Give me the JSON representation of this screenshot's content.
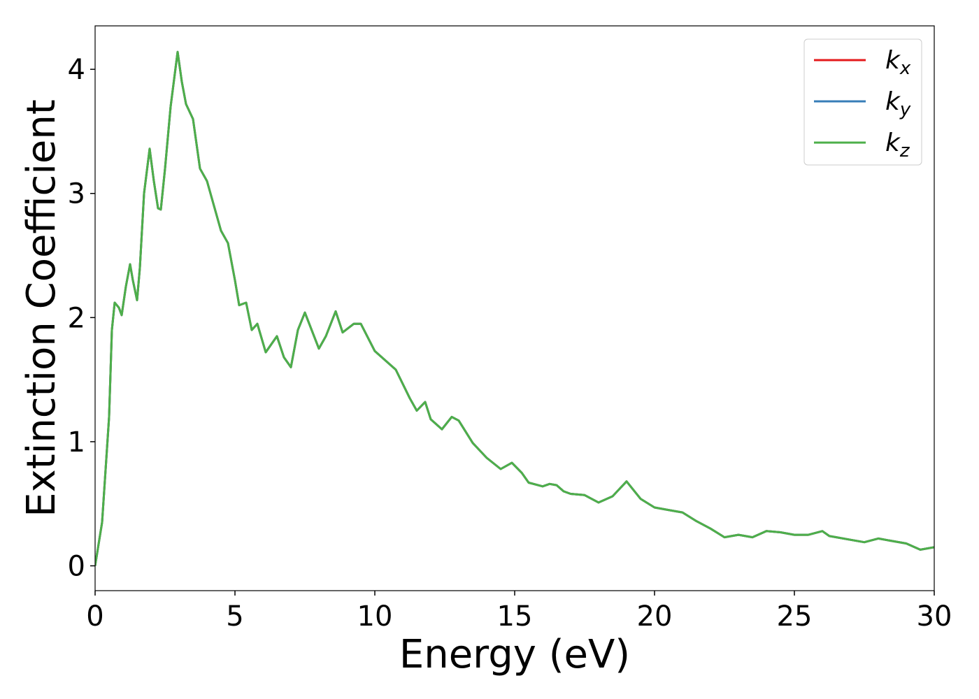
{
  "chart_data": {
    "type": "line",
    "xlabel": "Energy (eV)",
    "ylabel": "Extinction Coefficient",
    "x": [
      0,
      0.25,
      0.5,
      0.6,
      0.7,
      0.85,
      0.95,
      1.1,
      1.25,
      1.35,
      1.5,
      1.6,
      1.75,
      1.95,
      2.1,
      2.25,
      2.35,
      2.5,
      2.7,
      2.95,
      3.1,
      3.25,
      3.5,
      3.75,
      4,
      4.25,
      4.5,
      4.75,
      5,
      5.15,
      5.4,
      5.6,
      5.8,
      6.1,
      6.5,
      6.75,
      7,
      7.25,
      7.5,
      8,
      8.25,
      8.6,
      8.85,
      9.25,
      9.5,
      10,
      10.25,
      10.75,
      11.25,
      11.5,
      11.8,
      12,
      12.4,
      12.75,
      13,
      13.5,
      14,
      14.5,
      14.9,
      15.25,
      15.5,
      16,
      16.25,
      16.5,
      16.75,
      17,
      17.5,
      18,
      18.5,
      19,
      19.5,
      20,
      20.5,
      21,
      21.5,
      22,
      22.5,
      23,
      23.5,
      24,
      24.5,
      25,
      25.5,
      26,
      26.25,
      26.5,
      27,
      27.5,
      28,
      28.5,
      29,
      29.5,
      30
    ],
    "series": [
      {
        "name": "kx",
        "color": "#e41a1c",
        "values": [
          0,
          0.35,
          1.2,
          1.9,
          2.12,
          2.08,
          2.02,
          2.25,
          2.43,
          2.3,
          2.14,
          2.4,
          3.0,
          3.36,
          3.1,
          2.88,
          2.87,
          3.2,
          3.7,
          4.14,
          3.9,
          3.72,
          3.6,
          3.2,
          3.1,
          2.9,
          2.7,
          2.6,
          2.3,
          2.1,
          2.12,
          1.9,
          1.95,
          1.72,
          1.85,
          1.68,
          1.6,
          1.9,
          2.04,
          1.75,
          1.85,
          2.05,
          1.88,
          1.95,
          1.95,
          1.73,
          1.68,
          1.58,
          1.35,
          1.25,
          1.32,
          1.18,
          1.1,
          1.2,
          1.17,
          0.99,
          0.87,
          0.78,
          0.83,
          0.75,
          0.67,
          0.64,
          0.66,
          0.65,
          0.6,
          0.58,
          0.57,
          0.51,
          0.56,
          0.68,
          0.54,
          0.47,
          0.45,
          0.43,
          0.36,
          0.3,
          0.23,
          0.25,
          0.23,
          0.28,
          0.27,
          0.25,
          0.25,
          0.28,
          0.24,
          0.23,
          0.21,
          0.19,
          0.22,
          0.2,
          0.18,
          0.13,
          0.15
        ]
      },
      {
        "name": "ky",
        "color": "#377eb8",
        "values": [
          0,
          0.35,
          1.2,
          1.9,
          2.12,
          2.08,
          2.02,
          2.25,
          2.43,
          2.3,
          2.14,
          2.4,
          3.0,
          3.36,
          3.1,
          2.88,
          2.87,
          3.2,
          3.7,
          4.14,
          3.9,
          3.72,
          3.6,
          3.2,
          3.1,
          2.9,
          2.7,
          2.6,
          2.3,
          2.1,
          2.12,
          1.9,
          1.95,
          1.72,
          1.85,
          1.68,
          1.6,
          1.9,
          2.04,
          1.75,
          1.85,
          2.05,
          1.88,
          1.95,
          1.95,
          1.73,
          1.68,
          1.58,
          1.35,
          1.25,
          1.32,
          1.18,
          1.1,
          1.2,
          1.17,
          0.99,
          0.87,
          0.78,
          0.83,
          0.75,
          0.67,
          0.64,
          0.66,
          0.65,
          0.6,
          0.58,
          0.57,
          0.51,
          0.56,
          0.68,
          0.54,
          0.47,
          0.45,
          0.43,
          0.36,
          0.3,
          0.23,
          0.25,
          0.23,
          0.28,
          0.27,
          0.25,
          0.25,
          0.28,
          0.24,
          0.23,
          0.21,
          0.19,
          0.22,
          0.2,
          0.18,
          0.13,
          0.15
        ]
      },
      {
        "name": "kz",
        "color": "#4daf4a",
        "values": [
          0,
          0.35,
          1.2,
          1.9,
          2.12,
          2.08,
          2.02,
          2.25,
          2.43,
          2.3,
          2.14,
          2.4,
          3.0,
          3.36,
          3.1,
          2.88,
          2.87,
          3.2,
          3.7,
          4.14,
          3.9,
          3.72,
          3.6,
          3.2,
          3.1,
          2.9,
          2.7,
          2.6,
          2.3,
          2.1,
          2.12,
          1.9,
          1.95,
          1.72,
          1.85,
          1.68,
          1.6,
          1.9,
          2.04,
          1.75,
          1.85,
          2.05,
          1.88,
          1.95,
          1.95,
          1.73,
          1.68,
          1.58,
          1.35,
          1.25,
          1.32,
          1.18,
          1.1,
          1.2,
          1.17,
          0.99,
          0.87,
          0.78,
          0.83,
          0.75,
          0.67,
          0.64,
          0.66,
          0.65,
          0.6,
          0.58,
          0.57,
          0.51,
          0.56,
          0.68,
          0.54,
          0.47,
          0.45,
          0.43,
          0.36,
          0.3,
          0.23,
          0.25,
          0.23,
          0.28,
          0.27,
          0.25,
          0.25,
          0.28,
          0.24,
          0.23,
          0.21,
          0.19,
          0.22,
          0.2,
          0.18,
          0.13,
          0.15
        ]
      }
    ],
    "xlim": [
      0,
      30
    ],
    "xticks": [
      0,
      5,
      10,
      15,
      20,
      25,
      30
    ],
    "ylim": [
      -0.2,
      4.35
    ],
    "yticks": [
      0,
      1,
      2,
      3,
      4
    ],
    "grid": false,
    "legend": "upper right"
  }
}
